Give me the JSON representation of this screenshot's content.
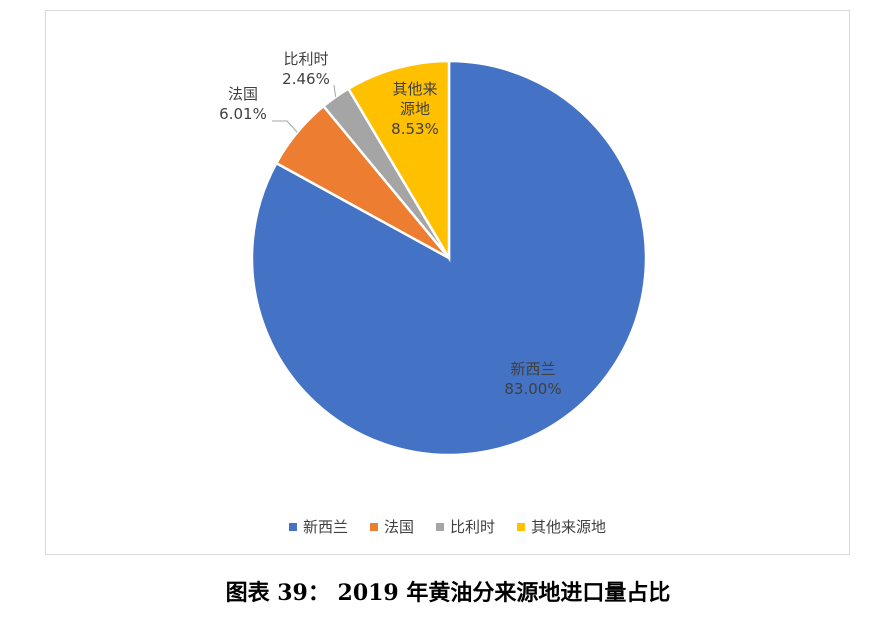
{
  "caption": "图表 39：  2019 年黄油分来源地进口量占比",
  "chart_data": {
    "type": "pie",
    "title": "",
    "slices": [
      {
        "label": "新西兰",
        "value": 83.0,
        "value_text": "83.00%",
        "color": "#4472C4"
      },
      {
        "label": "法国",
        "value": 6.01,
        "value_text": "6.01%",
        "color": "#ED7D31"
      },
      {
        "label": "比利时",
        "value": 2.46,
        "value_text": "2.46%",
        "color": "#A5A5A5"
      },
      {
        "label": "其他来源地",
        "value": 8.53,
        "value_text": "8.53%",
        "color": "#FFC000"
      }
    ],
    "legend_position": "bottom"
  },
  "legend": [
    {
      "label": "新西兰",
      "color": "#4472C4"
    },
    {
      "label": "法国",
      "color": "#ED7D31"
    },
    {
      "label": "比利时",
      "color": "#A5A5A5"
    },
    {
      "label": "其他来源地",
      "color": "#FFC000"
    }
  ]
}
